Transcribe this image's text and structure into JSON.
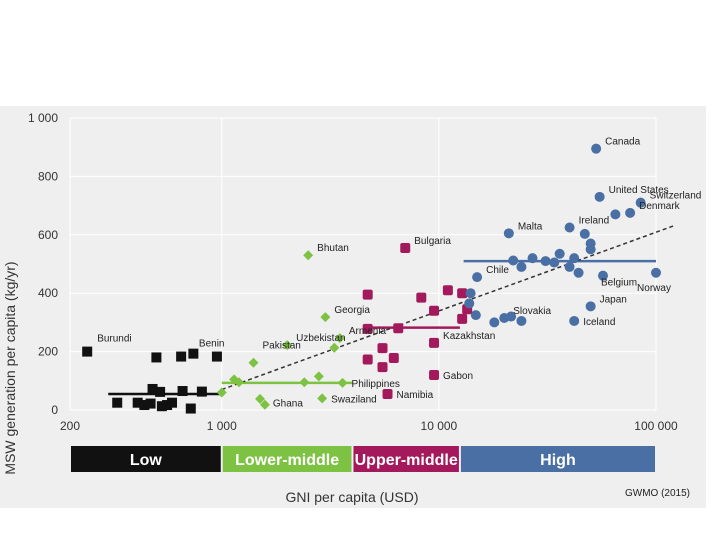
{
  "chart_data": {
    "type": "scatter",
    "xscale": "log",
    "xlim": [
      200,
      100000
    ],
    "ylim": [
      0,
      1000
    ],
    "xticks": [
      {
        "v": 200,
        "label": "200"
      },
      {
        "v": 1000,
        "label": "1 000"
      },
      {
        "v": 10000,
        "label": "10 000"
      },
      {
        "v": 100000,
        "label": "100 000"
      }
    ],
    "yticks": [
      {
        "v": 0,
        "label": "0"
      },
      {
        "v": 200,
        "label": "200"
      },
      {
        "v": 400,
        "label": "400"
      },
      {
        "v": 600,
        "label": "600"
      },
      {
        "v": 800,
        "label": "800"
      },
      {
        "v": 1000,
        "label": "1 000"
      }
    ],
    "ylabel": "MSW generation per capita (kg/yr)",
    "xlabel": "GNI per capita (USD)",
    "source": "GWMO (2015)",
    "colors": {
      "low": "#111111",
      "lower_middle": "#7dc242",
      "upper_middle": "#a3195b",
      "high": "#4a6fa5",
      "trend": "#333333"
    },
    "bands": [
      {
        "name": "Low",
        "from": 200,
        "to": 1000,
        "color": "#111111"
      },
      {
        "name": "Lower-middle",
        "from": 1000,
        "to": 4000,
        "color": "#7dc242"
      },
      {
        "name": "Upper-middle",
        "from": 4000,
        "to": 12500,
        "color": "#a3195b"
      },
      {
        "name": "High",
        "from": 12500,
        "to": 100000,
        "color": "#4a6fa5"
      }
    ],
    "group_means": [
      {
        "group": "low",
        "from": 300,
        "to": 1000,
        "y": 55,
        "color": "#111111"
      },
      {
        "group": "lower_middle",
        "from": 1000,
        "to": 4000,
        "y": 93,
        "color": "#7dc242"
      },
      {
        "group": "upper_middle",
        "from": 4700,
        "to": 12500,
        "y": 282,
        "color": "#a3195b"
      },
      {
        "group": "high",
        "from": 13000,
        "to": 100000,
        "y": 510,
        "color": "#4a6fa5"
      }
    ],
    "trendline": {
      "x": [
        1000,
        120000
      ],
      "y": [
        70,
        630
      ]
    },
    "series": [
      {
        "name": "Low income",
        "shape": "square",
        "color": "#111111",
        "points": [
          [
            240,
            200,
            "Burundi"
          ],
          [
            950,
            183,
            "Benin"
          ],
          [
            500,
            180,
            ""
          ],
          [
            650,
            183,
            ""
          ],
          [
            740,
            193,
            ""
          ],
          [
            330,
            25,
            ""
          ],
          [
            410,
            25,
            ""
          ],
          [
            440,
            17,
            ""
          ],
          [
            470,
            22,
            ""
          ],
          [
            480,
            72,
            ""
          ],
          [
            520,
            62,
            ""
          ],
          [
            530,
            13,
            ""
          ],
          [
            560,
            17,
            ""
          ],
          [
            590,
            25,
            ""
          ],
          [
            660,
            65,
            ""
          ],
          [
            720,
            5,
            ""
          ],
          [
            810,
            63,
            ""
          ]
        ]
      },
      {
        "name": "Lower-middle income",
        "shape": "diamond",
        "color": "#7dc242",
        "points": [
          [
            2500,
            530,
            "Bhutan"
          ],
          [
            3000,
            318,
            "Georgia"
          ],
          [
            3500,
            246,
            "Armenia"
          ],
          [
            2000,
            222,
            "Uzbekistan"
          ],
          [
            1400,
            162,
            "Pakistan"
          ],
          [
            3600,
            93,
            "Philippines"
          ],
          [
            1580,
            18,
            "Ghana"
          ],
          [
            2900,
            40,
            "Swaziland"
          ],
          [
            1000,
            60,
            ""
          ],
          [
            1140,
            105,
            ""
          ],
          [
            1200,
            95,
            ""
          ],
          [
            1500,
            38,
            ""
          ],
          [
            2400,
            95,
            ""
          ],
          [
            2800,
            115,
            ""
          ],
          [
            3300,
            213,
            ""
          ]
        ]
      },
      {
        "name": "Upper-middle income",
        "shape": "square",
        "color": "#a3195b",
        "points": [
          [
            7000,
            555,
            "Bulgaria"
          ],
          [
            4700,
            395,
            ""
          ],
          [
            8300,
            385,
            ""
          ],
          [
            11000,
            410,
            ""
          ],
          [
            12800,
            400,
            ""
          ],
          [
            9500,
            340,
            ""
          ],
          [
            13500,
            345,
            ""
          ],
          [
            12800,
            312,
            ""
          ],
          [
            4700,
            278,
            ""
          ],
          [
            6500,
            280,
            ""
          ],
          [
            9500,
            230,
            "Kazakhstan"
          ],
          [
            4700,
            173,
            ""
          ],
          [
            5500,
            212,
            ""
          ],
          [
            6200,
            178,
            ""
          ],
          [
            5500,
            147,
            ""
          ],
          [
            9500,
            120,
            "Gabon"
          ],
          [
            5800,
            55,
            "Namibia"
          ]
        ]
      },
      {
        "name": "High income",
        "shape": "circle",
        "color": "#4a6fa5",
        "points": [
          [
            53000,
            895,
            "Canada"
          ],
          [
            55000,
            730,
            "United States"
          ],
          [
            85000,
            710,
            "Switzerland"
          ],
          [
            76000,
            675,
            "Denmark"
          ],
          [
            40000,
            625,
            "Ireland"
          ],
          [
            21000,
            605,
            "Malta"
          ],
          [
            15000,
            455,
            "Chile"
          ],
          [
            57000,
            460,
            "Belgium"
          ],
          [
            100000,
            470,
            "Norway"
          ],
          [
            50000,
            355,
            "Japan"
          ],
          [
            20000,
            315,
            "Slovakia"
          ],
          [
            42000,
            305,
            "Iceland"
          ],
          [
            65000,
            670,
            ""
          ],
          [
            47000,
            603,
            ""
          ],
          [
            50000,
            570,
            ""
          ],
          [
            50000,
            550,
            ""
          ],
          [
            36000,
            535,
            ""
          ],
          [
            27000,
            520,
            ""
          ],
          [
            31000,
            510,
            ""
          ],
          [
            22000,
            512,
            ""
          ],
          [
            24000,
            490,
            ""
          ],
          [
            34000,
            505,
            ""
          ],
          [
            40000,
            490,
            ""
          ],
          [
            44000,
            470,
            ""
          ],
          [
            42000,
            520,
            ""
          ],
          [
            14000,
            400,
            ""
          ],
          [
            13800,
            365,
            ""
          ],
          [
            14800,
            325,
            ""
          ],
          [
            18000,
            300,
            ""
          ],
          [
            21500,
            320,
            ""
          ],
          [
            24000,
            305,
            ""
          ]
        ]
      }
    ]
  }
}
